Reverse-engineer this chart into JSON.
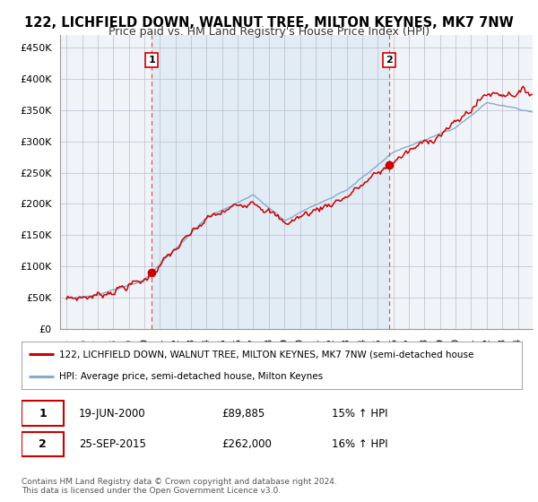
{
  "title": "122, LICHFIELD DOWN, WALNUT TREE, MILTON KEYNES, MK7 7NW",
  "subtitle": "Price paid vs. HM Land Registry's House Price Index (HPI)",
  "ylabel_ticks": [
    "£0",
    "£50K",
    "£100K",
    "£150K",
    "£200K",
    "£250K",
    "£300K",
    "£350K",
    "£400K",
    "£450K"
  ],
  "ytick_values": [
    0,
    50000,
    100000,
    150000,
    200000,
    250000,
    300000,
    350000,
    400000,
    450000
  ],
  "ylim": [
    0,
    470000
  ],
  "sale1": {
    "date": "19-JUN-2000",
    "price": 89885,
    "label": "1",
    "hpi_pct": "15%"
  },
  "sale2": {
    "date": "25-SEP-2015",
    "price": 262000,
    "label": "2",
    "hpi_pct": "16%"
  },
  "sale1_x": 2000.47,
  "sale2_x": 2015.73,
  "legend_line1": "122, LICHFIELD DOWN, WALNUT TREE, MILTON KEYNES, MK7 7NW (semi-detached house",
  "legend_line2": "HPI: Average price, semi-detached house, Milton Keynes",
  "footnote1": "Contains HM Land Registry data © Crown copyright and database right 2024.",
  "footnote2": "This data is licensed under the Open Government Licence v3.0.",
  "line_color_red": "#cc0000",
  "line_color_blue": "#88aacc",
  "vline_color": "#dd5555",
  "dot_color_red": "#cc0000",
  "fill_color": "#dce9f5",
  "background_color": "#ffffff",
  "grid_color": "#cccccc",
  "title_fontsize": 10.5,
  "subtitle_fontsize": 9,
  "tick_fontsize": 8
}
